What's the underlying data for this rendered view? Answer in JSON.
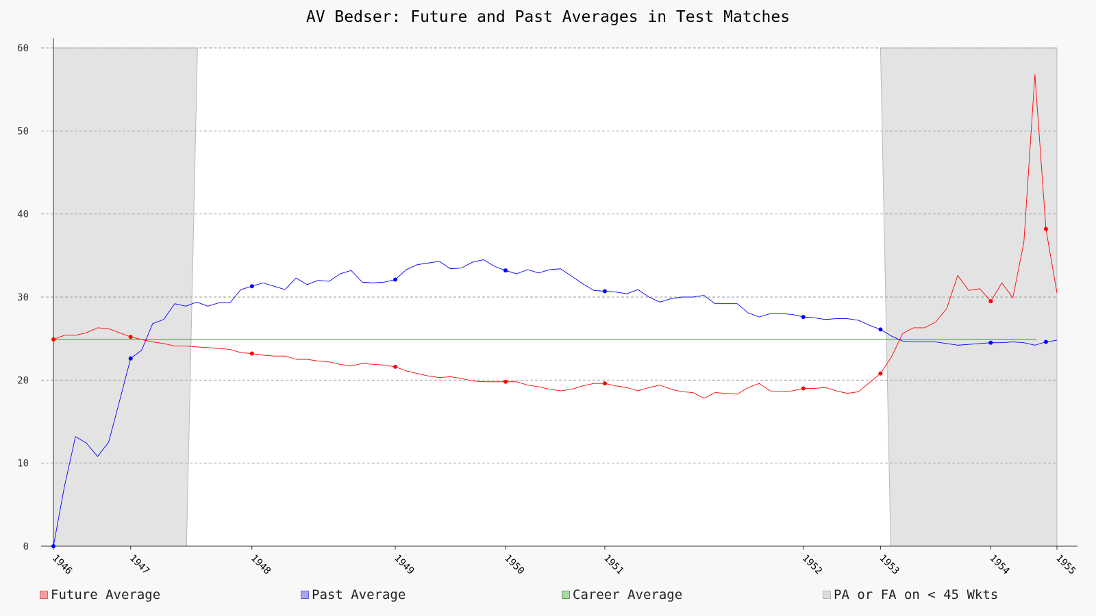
{
  "chart_data": {
    "type": "line",
    "title": "AV Bedser: Future and Past Averages in Test Matches",
    "xlabel": "",
    "ylabel": "",
    "ylim": [
      0,
      60
    ],
    "yticks": [
      0,
      10,
      20,
      30,
      40,
      50,
      60
    ],
    "xtick_labels": [
      "1946",
      "1947",
      "1948",
      "1949",
      "1950",
      "1951",
      "1952",
      "1953",
      "1954",
      "1955"
    ],
    "xtick_matches": [
      0,
      7,
      18,
      31,
      41,
      50,
      68,
      75,
      85,
      91
    ],
    "grid": true,
    "legend_position": "bottom",
    "career_average": 24.9,
    "low_wicket_regions": [
      {
        "start": 0,
        "end": 13
      },
      {
        "start": 75,
        "end": 91
      }
    ],
    "series": [
      {
        "name": "Future Average",
        "color": "#ff0000",
        "fill": "#f4a0a0",
        "values": [
          24.9,
          25.4,
          25.4,
          25.7,
          26.3,
          26.2,
          25.7,
          25.2,
          24.9,
          24.6,
          24.4,
          24.1,
          24.1,
          24.0,
          23.9,
          23.8,
          23.7,
          23.3,
          23.2,
          23.0,
          22.9,
          22.9,
          22.5,
          22.5,
          22.3,
          22.2,
          21.9,
          21.7,
          22.0,
          21.9,
          21.8,
          21.6,
          21.1,
          20.8,
          20.5,
          20.3,
          20.4,
          20.2,
          19.9,
          19.8,
          19.8,
          19.8,
          19.8,
          19.4,
          19.2,
          18.9,
          18.7,
          18.9,
          19.3,
          19.6,
          19.6,
          19.3,
          19.1,
          18.7,
          19.1,
          19.4,
          18.9,
          18.6,
          18.5,
          17.8,
          18.5,
          18.4,
          18.3,
          19.1,
          19.6,
          18.7,
          18.6,
          18.7,
          19.0,
          19.0,
          19.1,
          18.7,
          18.4,
          18.6,
          19.7,
          20.8,
          22.8,
          25.6,
          26.3,
          26.3,
          27.0,
          28.6,
          32.6,
          30.8,
          31.0,
          29.5,
          31.7,
          29.9,
          36.6,
          56.8,
          38.2,
          30.5
        ]
      },
      {
        "name": "Past Average",
        "color": "#0000ff",
        "fill": "#a8a8f0",
        "values": [
          0.0,
          7.2,
          13.2,
          12.4,
          10.8,
          12.5,
          17.5,
          22.6,
          23.6,
          26.8,
          27.3,
          29.2,
          28.9,
          29.4,
          28.9,
          29.3,
          29.3,
          30.9,
          31.3,
          31.7,
          31.3,
          30.9,
          32.3,
          31.5,
          32.0,
          31.9,
          32.8,
          33.2,
          31.8,
          31.7,
          31.8,
          32.1,
          33.3,
          33.9,
          34.1,
          34.3,
          33.4,
          33.5,
          34.2,
          34.5,
          33.7,
          33.2,
          32.8,
          33.3,
          32.9,
          33.3,
          33.4,
          32.5,
          31.6,
          30.8,
          30.7,
          30.6,
          30.4,
          30.9,
          30.0,
          29.4,
          29.8,
          30.0,
          30.0,
          30.2,
          29.2,
          29.2,
          29.2,
          28.1,
          27.6,
          28.0,
          28.0,
          27.9,
          27.6,
          27.5,
          27.3,
          27.4,
          27.4,
          27.2,
          26.6,
          26.1,
          25.3,
          24.7,
          24.6,
          24.6,
          24.6,
          24.4,
          24.2,
          24.3,
          24.4,
          24.5,
          24.5,
          24.6,
          24.5,
          24.2,
          24.6,
          24.8
        ]
      },
      {
        "name": "Career Average",
        "color": "#339933",
        "fill": "#a8d8a8"
      }
    ],
    "marked_points": {
      "future": [
        0,
        7,
        18,
        31,
        41,
        50,
        68,
        75,
        85,
        90
      ],
      "past": [
        0,
        7,
        18,
        31,
        41,
        50,
        68,
        75,
        85,
        90
      ]
    }
  },
  "legend": [
    {
      "label": "Future Average",
      "swatch": "#f4a0a0",
      "border": "#e06060"
    },
    {
      "label": "Past Average",
      "swatch": "#a8a8f0",
      "border": "#6060d0"
    },
    {
      "label": "Career Average",
      "swatch": "#a8d8a8",
      "border": "#60a060"
    },
    {
      "label": "PA or FA on < 45 Wkts",
      "swatch": "#dcdcdc",
      "border": "#b0b0b0"
    }
  ]
}
